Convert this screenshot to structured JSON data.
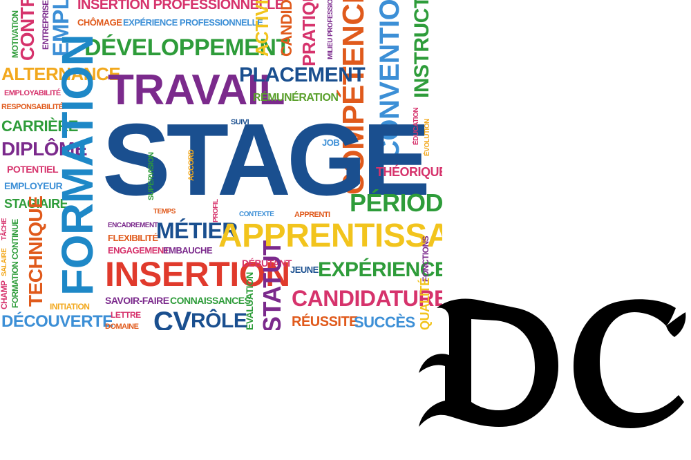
{
  "word_cloud": {
    "words": [
      {
        "id": "stage",
        "text": "STAGE",
        "color": "#1a4f8f"
      },
      {
        "id": "travail",
        "text": "TRAVAIL",
        "color": "#7b2a8c"
      },
      {
        "id": "formation",
        "text": "FORMATION",
        "color": "#1e88c7"
      },
      {
        "id": "developpement",
        "text": "DÉVELOPPEMENT",
        "color": "#2e9c3a"
      },
      {
        "id": "placement",
        "text": "PLACEMENT",
        "color": "#1a4f8f"
      },
      {
        "id": "remuneration",
        "text": "RÉMUNÉRATION",
        "color": "#5aa02c"
      },
      {
        "id": "insertion_pro",
        "text": "INSERTION PROFESSIONNELLE",
        "color": "#d6336c"
      },
      {
        "id": "chomage",
        "text": "CHÔMAGE",
        "color": "#e05a1c"
      },
      {
        "id": "experience_pro",
        "text": "EXPÉRIENCE PROFESSIONNELLE",
        "color": "#3c8fd6"
      },
      {
        "id": "alternance",
        "text": "ALTERNANCE",
        "color": "#f2a81d"
      },
      {
        "id": "employabilite",
        "text": "EMPLOYABILITÉ",
        "color": "#d6336c"
      },
      {
        "id": "responsabilite",
        "text": "RESPONSABILITÉ",
        "color": "#e05a1c"
      },
      {
        "id": "carriere",
        "text": "CARRIÈRE",
        "color": "#2e9c3a"
      },
      {
        "id": "diplome",
        "text": "DIPLÔME",
        "color": "#7b2a8c"
      },
      {
        "id": "potentiel",
        "text": "POTENTIEL",
        "color": "#d6336c"
      },
      {
        "id": "employeur",
        "text": "EMPLOYEUR",
        "color": "#3c8fd6"
      },
      {
        "id": "stagiaire",
        "text": "STAGIAIRE",
        "color": "#2e9c3a"
      },
      {
        "id": "technique",
        "text": "TECHNIQUE",
        "color": "#e05a1c"
      },
      {
        "id": "formation_continue",
        "text": "FORMATION CONTINUE",
        "color": "#2e9c3a"
      },
      {
        "id": "champ",
        "text": "CHAMP",
        "color": "#d6336c"
      },
      {
        "id": "decouverte",
        "text": "DÉCOUVERTE",
        "color": "#3c8fd6"
      },
      {
        "id": "motivation",
        "text": "MOTIVATION",
        "color": "#2e9c3a"
      },
      {
        "id": "contrat",
        "text": "CONTRAT",
        "color": "#d6336c"
      },
      {
        "id": "entreprise",
        "text": "ENTREPRISE",
        "color": "#7b2a8c"
      },
      {
        "id": "emploi",
        "text": "EMPLOI",
        "color": "#3c8fd6"
      },
      {
        "id": "activite",
        "text": "ACTIVITÉ",
        "color": "#f2c41d"
      },
      {
        "id": "candidat",
        "text": "CANDIDAT",
        "color": "#e05a1c"
      },
      {
        "id": "pratique",
        "text": "PRATIQUE",
        "color": "#d6336c"
      },
      {
        "id": "milieu_pro",
        "text": "MILIEU PROFESSIONNEL",
        "color": "#7b2a8c"
      },
      {
        "id": "competences",
        "text": "COMPÉTENCES",
        "color": "#e05a1c"
      },
      {
        "id": "convention",
        "text": "CONVENTION",
        "color": "#3c8fd6"
      },
      {
        "id": "instruction",
        "text": "INSTRUCTION",
        "color": "#2e9c3a"
      },
      {
        "id": "education",
        "text": "ÉDUCATION",
        "color": "#d6336c"
      },
      {
        "id": "evolution",
        "text": "ÉVOLUTION",
        "color": "#f2a81d"
      },
      {
        "id": "theorique",
        "text": "THÉORIQUE",
        "color": "#d6336c"
      },
      {
        "id": "periode",
        "text": "PÉRIODE",
        "color": "#2e9c3a"
      },
      {
        "id": "apprentissage",
        "text": "APPRENTISSAGE",
        "color": "#f2c41d"
      },
      {
        "id": "metier",
        "text": "MÉTIER",
        "color": "#1a4f8f"
      },
      {
        "id": "insertion",
        "text": "INSERTION",
        "color": "#e03a2c"
      },
      {
        "id": "flexibilite",
        "text": "FLEXIBILITÉ",
        "color": "#e05a1c"
      },
      {
        "id": "engagement",
        "text": "ENGAGEMENT",
        "color": "#d6336c"
      },
      {
        "id": "embauche",
        "text": "EMBAUCHE",
        "color": "#7b2a8c"
      },
      {
        "id": "encadrement",
        "text": "ENCADREMENT",
        "color": "#7b2a8c"
      },
      {
        "id": "temps",
        "text": "TEMPS",
        "color": "#e05a1c"
      },
      {
        "id": "profil",
        "text": "PROFIL",
        "color": "#d6336c"
      },
      {
        "id": "contexte",
        "text": "CONTEXTE",
        "color": "#3c8fd6"
      },
      {
        "id": "apprenti",
        "text": "APPRENTI",
        "color": "#e05a1c"
      },
      {
        "id": "supervision",
        "text": "SUPERVISION",
        "color": "#2e9c3a"
      },
      {
        "id": "accord",
        "text": "ACCORD",
        "color": "#f2a81d"
      },
      {
        "id": "suivi",
        "text": "SUIVI",
        "color": "#1a4f8f"
      },
      {
        "id": "job",
        "text": "JOB",
        "color": "#3c8fd6"
      },
      {
        "id": "debutant",
        "text": "DÉBUTANT",
        "color": "#d6336c"
      },
      {
        "id": "jeune",
        "text": "JEUNE",
        "color": "#1a4f8f"
      },
      {
        "id": "experience",
        "text": "EXPÉRIENCE",
        "color": "#2e9c3a"
      },
      {
        "id": "fonctions",
        "text": "FONCTIONS",
        "color": "#7b2a8c"
      },
      {
        "id": "statut",
        "text": "STATUT",
        "color": "#7b2a8c"
      },
      {
        "id": "evaluation",
        "text": "ÉVALUATION",
        "color": "#2e9c3a"
      },
      {
        "id": "candidature",
        "text": "CANDIDATURE",
        "color": "#d6336c"
      },
      {
        "id": "reussite",
        "text": "RÉUSSITE",
        "color": "#e05a1c"
      },
      {
        "id": "succes",
        "text": "SUCCÈS",
        "color": "#3c8fd6"
      },
      {
        "id": "cv",
        "text": "CV",
        "color": "#1a4f8f"
      },
      {
        "id": "role",
        "text": "RÔLE",
        "color": "#1a4f8f"
      },
      {
        "id": "savoir_faire",
        "text": "SAVOIR-FAIRE",
        "color": "#7b2a8c"
      },
      {
        "id": "connaissances",
        "text": "CONNAISSANCES",
        "color": "#2e9c3a"
      },
      {
        "id": "lettre",
        "text": "LETTRE",
        "color": "#d6336c"
      },
      {
        "id": "domaine",
        "text": "DOMAINE",
        "color": "#e05a1c"
      },
      {
        "id": "initiation",
        "text": "INITIATION",
        "color": "#f2a81d"
      },
      {
        "id": "tache",
        "text": "TÂCHE",
        "color": "#d6336c"
      },
      {
        "id": "salaire",
        "text": "SALAIRE",
        "color": "#f2a81d"
      },
      {
        "id": "qualite",
        "text": "QUALITÉ",
        "color": "#f2c41d"
      }
    ]
  },
  "logo": {
    "text": "DC",
    "color": "#000000"
  }
}
